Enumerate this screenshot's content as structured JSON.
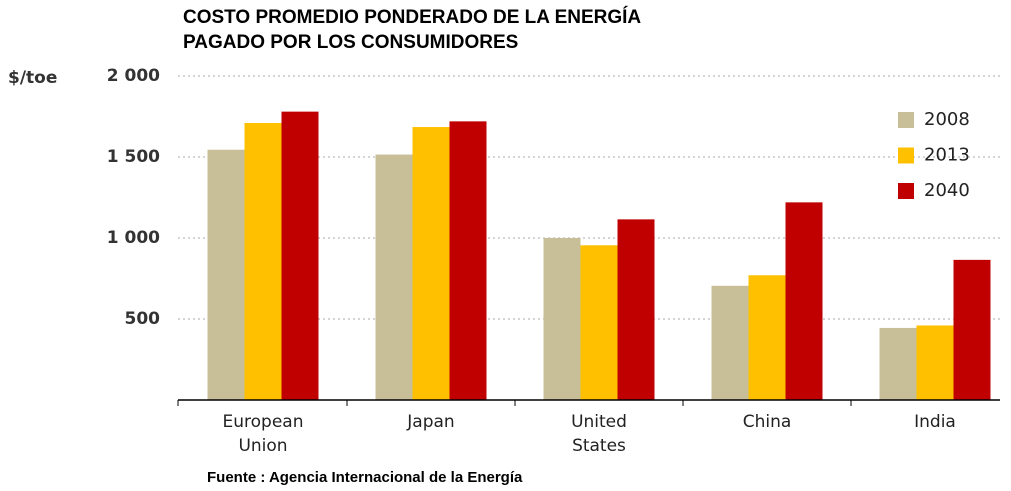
{
  "chart_data": {
    "type": "bar",
    "title": [
      "COSTO PROMEDIO PONDERADO DE LA ENERGÍA",
      "PAGADO POR LOS CONSUMIDORES"
    ],
    "y_axis_label": "$/toe",
    "source": "Fuente : Agencia Internacional de la Energía",
    "categories": [
      "European Union",
      "Japan",
      "United States",
      "China",
      "India"
    ],
    "series": [
      {
        "name": "2008",
        "color": "#c8bf98",
        "values": [
          1545,
          1515,
          1000,
          705,
          445
        ]
      },
      {
        "name": "2013",
        "color": "#ffc000",
        "values": [
          1710,
          1685,
          955,
          770,
          460
        ]
      },
      {
        "name": "2040",
        "color": "#c00000",
        "values": [
          1780,
          1720,
          1115,
          1220,
          865
        ]
      }
    ],
    "ylim": [
      0,
      2000
    ],
    "yticks": [
      {
        "value": 500,
        "label": "500"
      },
      {
        "value": 1000,
        "label": "1 000"
      },
      {
        "value": 1500,
        "label": "1 500"
      },
      {
        "value": 2000,
        "label": "2 000"
      }
    ],
    "grid": true,
    "legend": "right"
  }
}
